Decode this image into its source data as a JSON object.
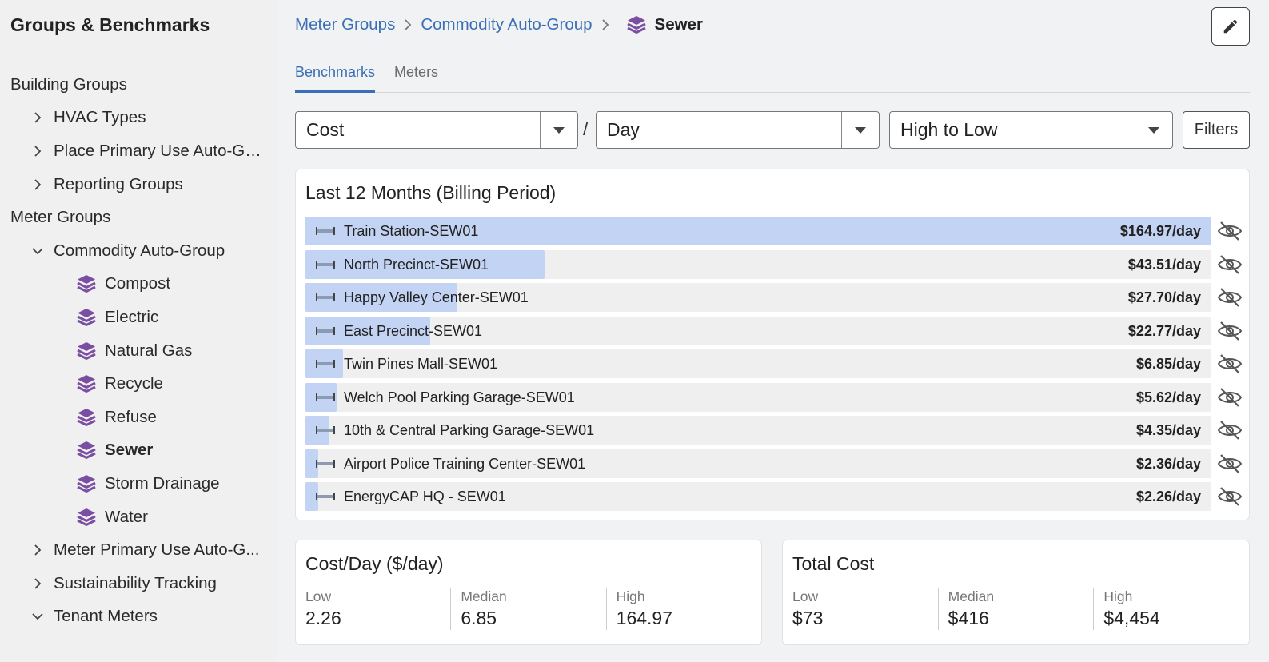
{
  "sidebar": {
    "title": "Groups & Benchmarks",
    "tree": [
      {
        "label": "Building Groups",
        "level": 0,
        "chevron": "none"
      },
      {
        "label": "HVAC Types",
        "level": 1,
        "chevron": "right"
      },
      {
        "label": "Place Primary Use Auto-Gr...",
        "level": 1,
        "chevron": "right"
      },
      {
        "label": "Reporting Groups",
        "level": 1,
        "chevron": "right"
      },
      {
        "label": "Meter Groups",
        "level": 0,
        "chevron": "none"
      },
      {
        "label": "Commodity Auto-Group",
        "level": 1,
        "chevron": "down"
      },
      {
        "label": "Compost",
        "level": 2,
        "icon": "layers-icon"
      },
      {
        "label": "Electric",
        "level": 2,
        "icon": "layers-icon"
      },
      {
        "label": "Natural Gas",
        "level": 2,
        "icon": "layers-icon"
      },
      {
        "label": "Recycle",
        "level": 2,
        "icon": "layers-icon"
      },
      {
        "label": "Refuse",
        "level": 2,
        "icon": "layers-icon"
      },
      {
        "label": "Sewer",
        "level": 2,
        "icon": "layers-icon",
        "active": true
      },
      {
        "label": "Storm Drainage",
        "level": 2,
        "icon": "layers-icon"
      },
      {
        "label": "Water",
        "level": 2,
        "icon": "layers-icon"
      },
      {
        "label": "Meter Primary Use Auto-G...",
        "level": 1,
        "chevron": "right"
      },
      {
        "label": "Sustainability Tracking",
        "level": 1,
        "chevron": "right"
      },
      {
        "label": "Tenant Meters",
        "level": 1,
        "chevron": "down"
      }
    ]
  },
  "breadcrumb": {
    "items": [
      "Meter Groups",
      "Commodity Auto-Group"
    ],
    "current": "Sewer"
  },
  "tabs": [
    {
      "label": "Benchmarks",
      "active": true
    },
    {
      "label": "Meters",
      "active": false
    }
  ],
  "controls": {
    "metric": "Cost",
    "separator": "/",
    "per": "Day",
    "sort": "High to Low",
    "filters_label": "Filters"
  },
  "benchmark": {
    "title": "Last 12 Months (Billing Period)",
    "rows": [
      {
        "name": "Train Station-SEW01",
        "value": 164.97,
        "label": "$164.97/day"
      },
      {
        "name": "North Precinct-SEW01",
        "value": 43.51,
        "label": "$43.51/day"
      },
      {
        "name": "Happy Valley Center-SEW01",
        "value": 27.7,
        "label": "$27.70/day"
      },
      {
        "name": "East Precinct-SEW01",
        "value": 22.77,
        "label": "$22.77/day"
      },
      {
        "name": "Twin Pines Mall-SEW01",
        "value": 6.85,
        "label": "$6.85/day"
      },
      {
        "name": "Welch Pool Parking Garage-SEW01",
        "value": 5.62,
        "label": "$5.62/day"
      },
      {
        "name": "10th & Central Parking Garage-SEW01",
        "value": 4.35,
        "label": "$4.35/day"
      },
      {
        "name": "Airport Police Training Center-SEW01",
        "value": 2.36,
        "label": "$2.36/day"
      },
      {
        "name": "EnergyCAP HQ - SEW01",
        "value": 2.26,
        "label": "$2.26/day"
      }
    ]
  },
  "cost_per_day": {
    "title": "Cost/Day ($/day)",
    "stats": [
      {
        "label": "Low",
        "value": "2.26"
      },
      {
        "label": "Median",
        "value": "6.85"
      },
      {
        "label": "High",
        "value": "164.97"
      }
    ]
  },
  "total_cost": {
    "title": "Total Cost",
    "stats": [
      {
        "label": "Low",
        "value": "$73"
      },
      {
        "label": "Median",
        "value": "$416"
      },
      {
        "label": "High",
        "value": "$4,454"
      }
    ]
  },
  "colors": {
    "accent": "#3a6fb7",
    "bar_fill": "#c3d3f3",
    "icon_purple": "#7a4fa3"
  }
}
